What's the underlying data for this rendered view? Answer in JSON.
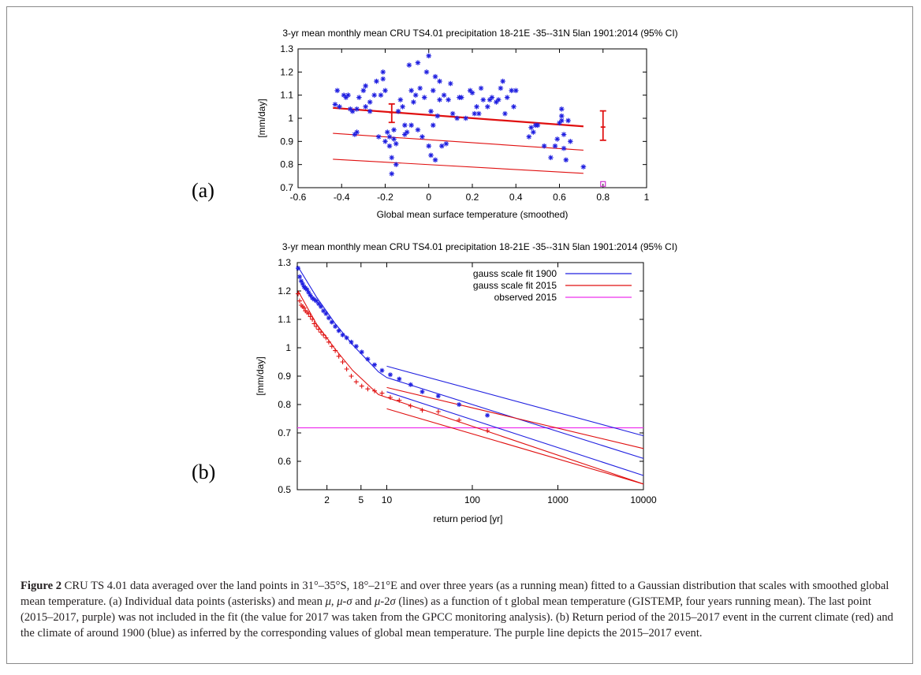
{
  "figure": {
    "panel_a_label": "(a)",
    "panel_b_label": "(b)",
    "caption_lead": "Figure 2",
    "caption_text": [
      " CRU TS 4.01 data averaged over the land points in 31°–35°S, 18°–21°E and over three years (as a running mean) fitted to a Gaussian distribution that scales with smoothed global mean temperature. (a) Individual data points (asterisks) and mean ",
      "μ",
      ", ",
      "μ",
      "-",
      "σ",
      " and ",
      "μ",
      "-2",
      "σ",
      " (lines) as a function of t global mean temperature (GISTEMP, four years running mean). The last point (2015–2017, purple) was not included in the fit (the value for 2017 was taken from the GPCC monitoring analysis). (b) Return period of the 2015–2017 event in the current climate (red) and the climate of around 1900 (blue) as inferred by the corresponding values of global mean temperature. The purple line depicts the 2015–2017 event."
    ]
  },
  "chart_data": [
    {
      "type": "scatter",
      "title": "3-yr mean monthly mean CRU TS4.01 precipitation 18-21E -35--31N 5lan 1901:2014 (95% CI)",
      "xlabel": "Global mean surface temperature (smoothed)",
      "ylabel": "[mm/day]",
      "xlim": [
        -0.6,
        1.0
      ],
      "ylim": [
        0.7,
        1.3
      ],
      "xticks": [
        "-0.6",
        "-0.4",
        "-0.2",
        "0",
        "0.2",
        "0.4",
        "0.6",
        "0.8",
        "1"
      ],
      "yticks": [
        "0.7",
        "0.8",
        "0.9",
        "1",
        "1.1",
        "1.2",
        "1.3"
      ],
      "colors": {
        "points": "#1f1fe0",
        "fit": "#e01010",
        "observed": "#cc33cc"
      },
      "points": [
        [
          -0.43,
          1.06
        ],
        [
          -0.42,
          1.12
        ],
        [
          -0.41,
          1.05
        ],
        [
          -0.39,
          1.1
        ],
        [
          -0.38,
          1.09
        ],
        [
          -0.37,
          1.1
        ],
        [
          -0.36,
          1.04
        ],
        [
          -0.35,
          1.03
        ],
        [
          -0.34,
          0.93
        ],
        [
          -0.33,
          0.94
        ],
        [
          -0.33,
          1.04
        ],
        [
          -0.32,
          1.09
        ],
        [
          -0.3,
          1.12
        ],
        [
          -0.29,
          1.14
        ],
        [
          -0.29,
          1.05
        ],
        [
          -0.27,
          1.03
        ],
        [
          -0.27,
          1.07
        ],
        [
          -0.25,
          1.1
        ],
        [
          -0.24,
          1.16
        ],
        [
          -0.23,
          0.92
        ],
        [
          -0.22,
          1.1
        ],
        [
          -0.21,
          1.17
        ],
        [
          -0.21,
          1.2
        ],
        [
          -0.2,
          1.12
        ],
        [
          -0.2,
          0.9
        ],
        [
          -0.19,
          0.94
        ],
        [
          -0.18,
          0.92
        ],
        [
          -0.18,
          0.88
        ],
        [
          -0.17,
          0.83
        ],
        [
          -0.17,
          0.76
        ],
        [
          -0.16,
          0.95
        ],
        [
          -0.16,
          0.91
        ],
        [
          -0.15,
          0.8
        ],
        [
          -0.15,
          0.89
        ],
        [
          -0.14,
          1.03
        ],
        [
          -0.13,
          1.08
        ],
        [
          -0.12,
          1.05
        ],
        [
          -0.11,
          0.93
        ],
        [
          -0.11,
          0.97
        ],
        [
          -0.1,
          0.94
        ],
        [
          -0.09,
          1.23
        ],
        [
          -0.08,
          1.12
        ],
        [
          -0.08,
          0.97
        ],
        [
          -0.07,
          1.07
        ],
        [
          -0.06,
          1.1
        ],
        [
          -0.05,
          1.24
        ],
        [
          -0.05,
          0.95
        ],
        [
          -0.04,
          1.13
        ],
        [
          -0.03,
          0.92
        ],
        [
          -0.02,
          1.09
        ],
        [
          -0.01,
          1.2
        ],
        [
          0.0,
          1.27
        ],
        [
          0.0,
          0.88
        ],
        [
          0.01,
          0.84
        ],
        [
          0.01,
          1.03
        ],
        [
          0.02,
          1.12
        ],
        [
          0.02,
          0.97
        ],
        [
          0.03,
          1.18
        ],
        [
          0.03,
          0.82
        ],
        [
          0.04,
          1.01
        ],
        [
          0.05,
          1.16
        ],
        [
          0.05,
          1.08
        ],
        [
          0.06,
          0.88
        ],
        [
          0.07,
          1.1
        ],
        [
          0.08,
          0.89
        ],
        [
          0.09,
          1.08
        ],
        [
          0.1,
          1.15
        ],
        [
          0.11,
          1.02
        ],
        [
          0.13,
          1.0
        ],
        [
          0.14,
          1.09
        ],
        [
          0.15,
          1.09
        ],
        [
          0.17,
          1.0
        ],
        [
          0.19,
          1.12
        ],
        [
          0.2,
          1.11
        ],
        [
          0.21,
          1.02
        ],
        [
          0.22,
          1.05
        ],
        [
          0.23,
          1.02
        ],
        [
          0.24,
          1.13
        ],
        [
          0.25,
          1.08
        ],
        [
          0.27,
          1.05
        ],
        [
          0.28,
          1.08
        ],
        [
          0.29,
          1.09
        ],
        [
          0.31,
          1.07
        ],
        [
          0.32,
          1.08
        ],
        [
          0.33,
          1.13
        ],
        [
          0.34,
          1.16
        ],
        [
          0.35,
          1.02
        ],
        [
          0.36,
          1.09
        ],
        [
          0.38,
          1.12
        ],
        [
          0.39,
          1.05
        ],
        [
          0.4,
          1.12
        ],
        [
          0.46,
          0.92
        ],
        [
          0.47,
          0.96
        ],
        [
          0.48,
          0.94
        ],
        [
          0.49,
          0.97
        ],
        [
          0.5,
          0.97
        ],
        [
          0.53,
          0.88
        ],
        [
          0.56,
          0.83
        ],
        [
          0.58,
          0.88
        ],
        [
          0.59,
          0.91
        ],
        [
          0.6,
          0.98
        ],
        [
          0.61,
          1.04
        ],
        [
          0.61,
          0.99
        ],
        [
          0.62,
          0.87
        ],
        [
          0.62,
          0.93
        ],
        [
          0.63,
          0.82
        ],
        [
          0.64,
          0.99
        ],
        [
          0.65,
          0.9
        ],
        [
          0.71,
          0.79
        ],
        [
          0.61,
          1.01
        ]
      ],
      "fit_lines": [
        {
          "name": "μ",
          "x": [
            -0.44,
            0.71
          ],
          "y": [
            1.045,
            0.965
          ]
        },
        {
          "name": "μ-σ",
          "x": [
            -0.44,
            0.71
          ],
          "y": [
            0.935,
            0.862
          ]
        },
        {
          "name": "μ-2σ",
          "x": [
            -0.44,
            0.71
          ],
          "y": [
            0.823,
            0.762
          ]
        }
      ],
      "error_bars": [
        {
          "x": -0.17,
          "y": 1.025,
          "low": 0.982,
          "high": 1.062
        },
        {
          "x": 0.8,
          "y": 0.962,
          "low": 0.905,
          "high": 1.032
        }
      ],
      "observed_point": [
        0.8,
        0.716
      ]
    },
    {
      "type": "scatter",
      "title": "3-yr mean monthly mean CRU TS4.01 precipitation 18-21E -35--31N 5lan 1901:2014 (95% CI)",
      "xlabel": "return period [yr]",
      "ylabel": "[mm/day]",
      "xscale": "log",
      "xlim": [
        0.9,
        10000
      ],
      "ylim": [
        0.5,
        1.3
      ],
      "xticks": [
        "2",
        "5",
        "10",
        "100",
        "1000",
        "10000"
      ],
      "xtick_values": [
        2,
        5,
        10,
        100,
        1000,
        10000
      ],
      "yticks": [
        "0.5",
        "0.6",
        "0.7",
        "0.8",
        "0.9",
        "1",
        "1.1",
        "1.2",
        "1.3"
      ],
      "legend": {
        "position": "top-right",
        "entries": [
          {
            "label": "gauss scale fit 1900",
            "color": "#2020e0"
          },
          {
            "label": "gauss scale fit 2015",
            "color": "#e01010"
          },
          {
            "label": "observed 2015",
            "color": "#ee33ee"
          }
        ]
      },
      "observed_level": 0.718,
      "series": [
        {
          "name": "gauss scale fit 1900",
          "color": "#2020e0",
          "curves": [
            {
              "x": [
                0.92,
                1.5,
                2.5,
                4,
                8,
                10,
                10000
              ],
              "y": [
                1.285,
                1.18,
                1.085,
                1.01,
                0.915,
                0.895,
                0.61
              ]
            },
            {
              "x": [
                10,
                10000
              ],
              "y": [
                0.935,
                0.69
              ]
            },
            {
              "x": [
                10,
                10000
              ],
              "y": [
                0.845,
                0.55
              ]
            }
          ]
        },
        {
          "name": "gauss scale fit 2015",
          "color": "#e01010",
          "curves": [
            {
              "x": [
                0.92,
                1.5,
                2.5,
                4,
                8,
                10,
                10000
              ],
              "y": [
                1.2,
                1.085,
                0.995,
                0.92,
                0.835,
                0.825,
                0.52
              ]
            },
            {
              "x": [
                10,
                10000
              ],
              "y": [
                0.86,
                0.645
              ]
            },
            {
              "x": [
                10,
                10000
              ],
              "y": [
                0.785,
                0.52
              ]
            }
          ]
        }
      ],
      "observed_1900": {
        "x": [
          0.92,
          0.96,
          1.0,
          1.04,
          1.08,
          1.12,
          1.17,
          1.22,
          1.28,
          1.35,
          1.42,
          1.5,
          1.6,
          1.7,
          1.82,
          1.95,
          2.1,
          2.28,
          2.5,
          2.75,
          3.05,
          3.4,
          3.85,
          4.4,
          5.1,
          6,
          7.2,
          8.8,
          11,
          14,
          19,
          26,
          40,
          70,
          150
        ],
        "y": [
          1.28,
          1.25,
          1.235,
          1.225,
          1.215,
          1.21,
          1.205,
          1.195,
          1.185,
          1.175,
          1.17,
          1.165,
          1.155,
          1.145,
          1.13,
          1.12,
          1.105,
          1.09,
          1.075,
          1.06,
          1.045,
          1.035,
          1.02,
          1.005,
          0.985,
          0.96,
          0.94,
          0.92,
          0.905,
          0.89,
          0.87,
          0.845,
          0.83,
          0.8,
          0.762
        ]
      },
      "observed_2015": {
        "x": [
          0.92,
          0.96,
          1.0,
          1.04,
          1.08,
          1.12,
          1.17,
          1.22,
          1.28,
          1.35,
          1.42,
          1.5,
          1.6,
          1.7,
          1.82,
          1.95,
          2.1,
          2.28,
          2.5,
          2.75,
          3.05,
          3.4,
          3.85,
          4.4,
          5.1,
          6,
          7.2,
          8.8,
          11,
          14,
          19,
          26,
          40,
          70,
          150
        ],
        "y": [
          1.19,
          1.165,
          1.15,
          1.145,
          1.14,
          1.13,
          1.125,
          1.12,
          1.11,
          1.1,
          1.085,
          1.075,
          1.065,
          1.055,
          1.045,
          1.035,
          1.02,
          1.005,
          0.99,
          0.97,
          0.95,
          0.925,
          0.9,
          0.88,
          0.865,
          0.855,
          0.848,
          0.84,
          0.825,
          0.815,
          0.795,
          0.78,
          0.775,
          0.745,
          0.708
        ]
      }
    }
  ]
}
